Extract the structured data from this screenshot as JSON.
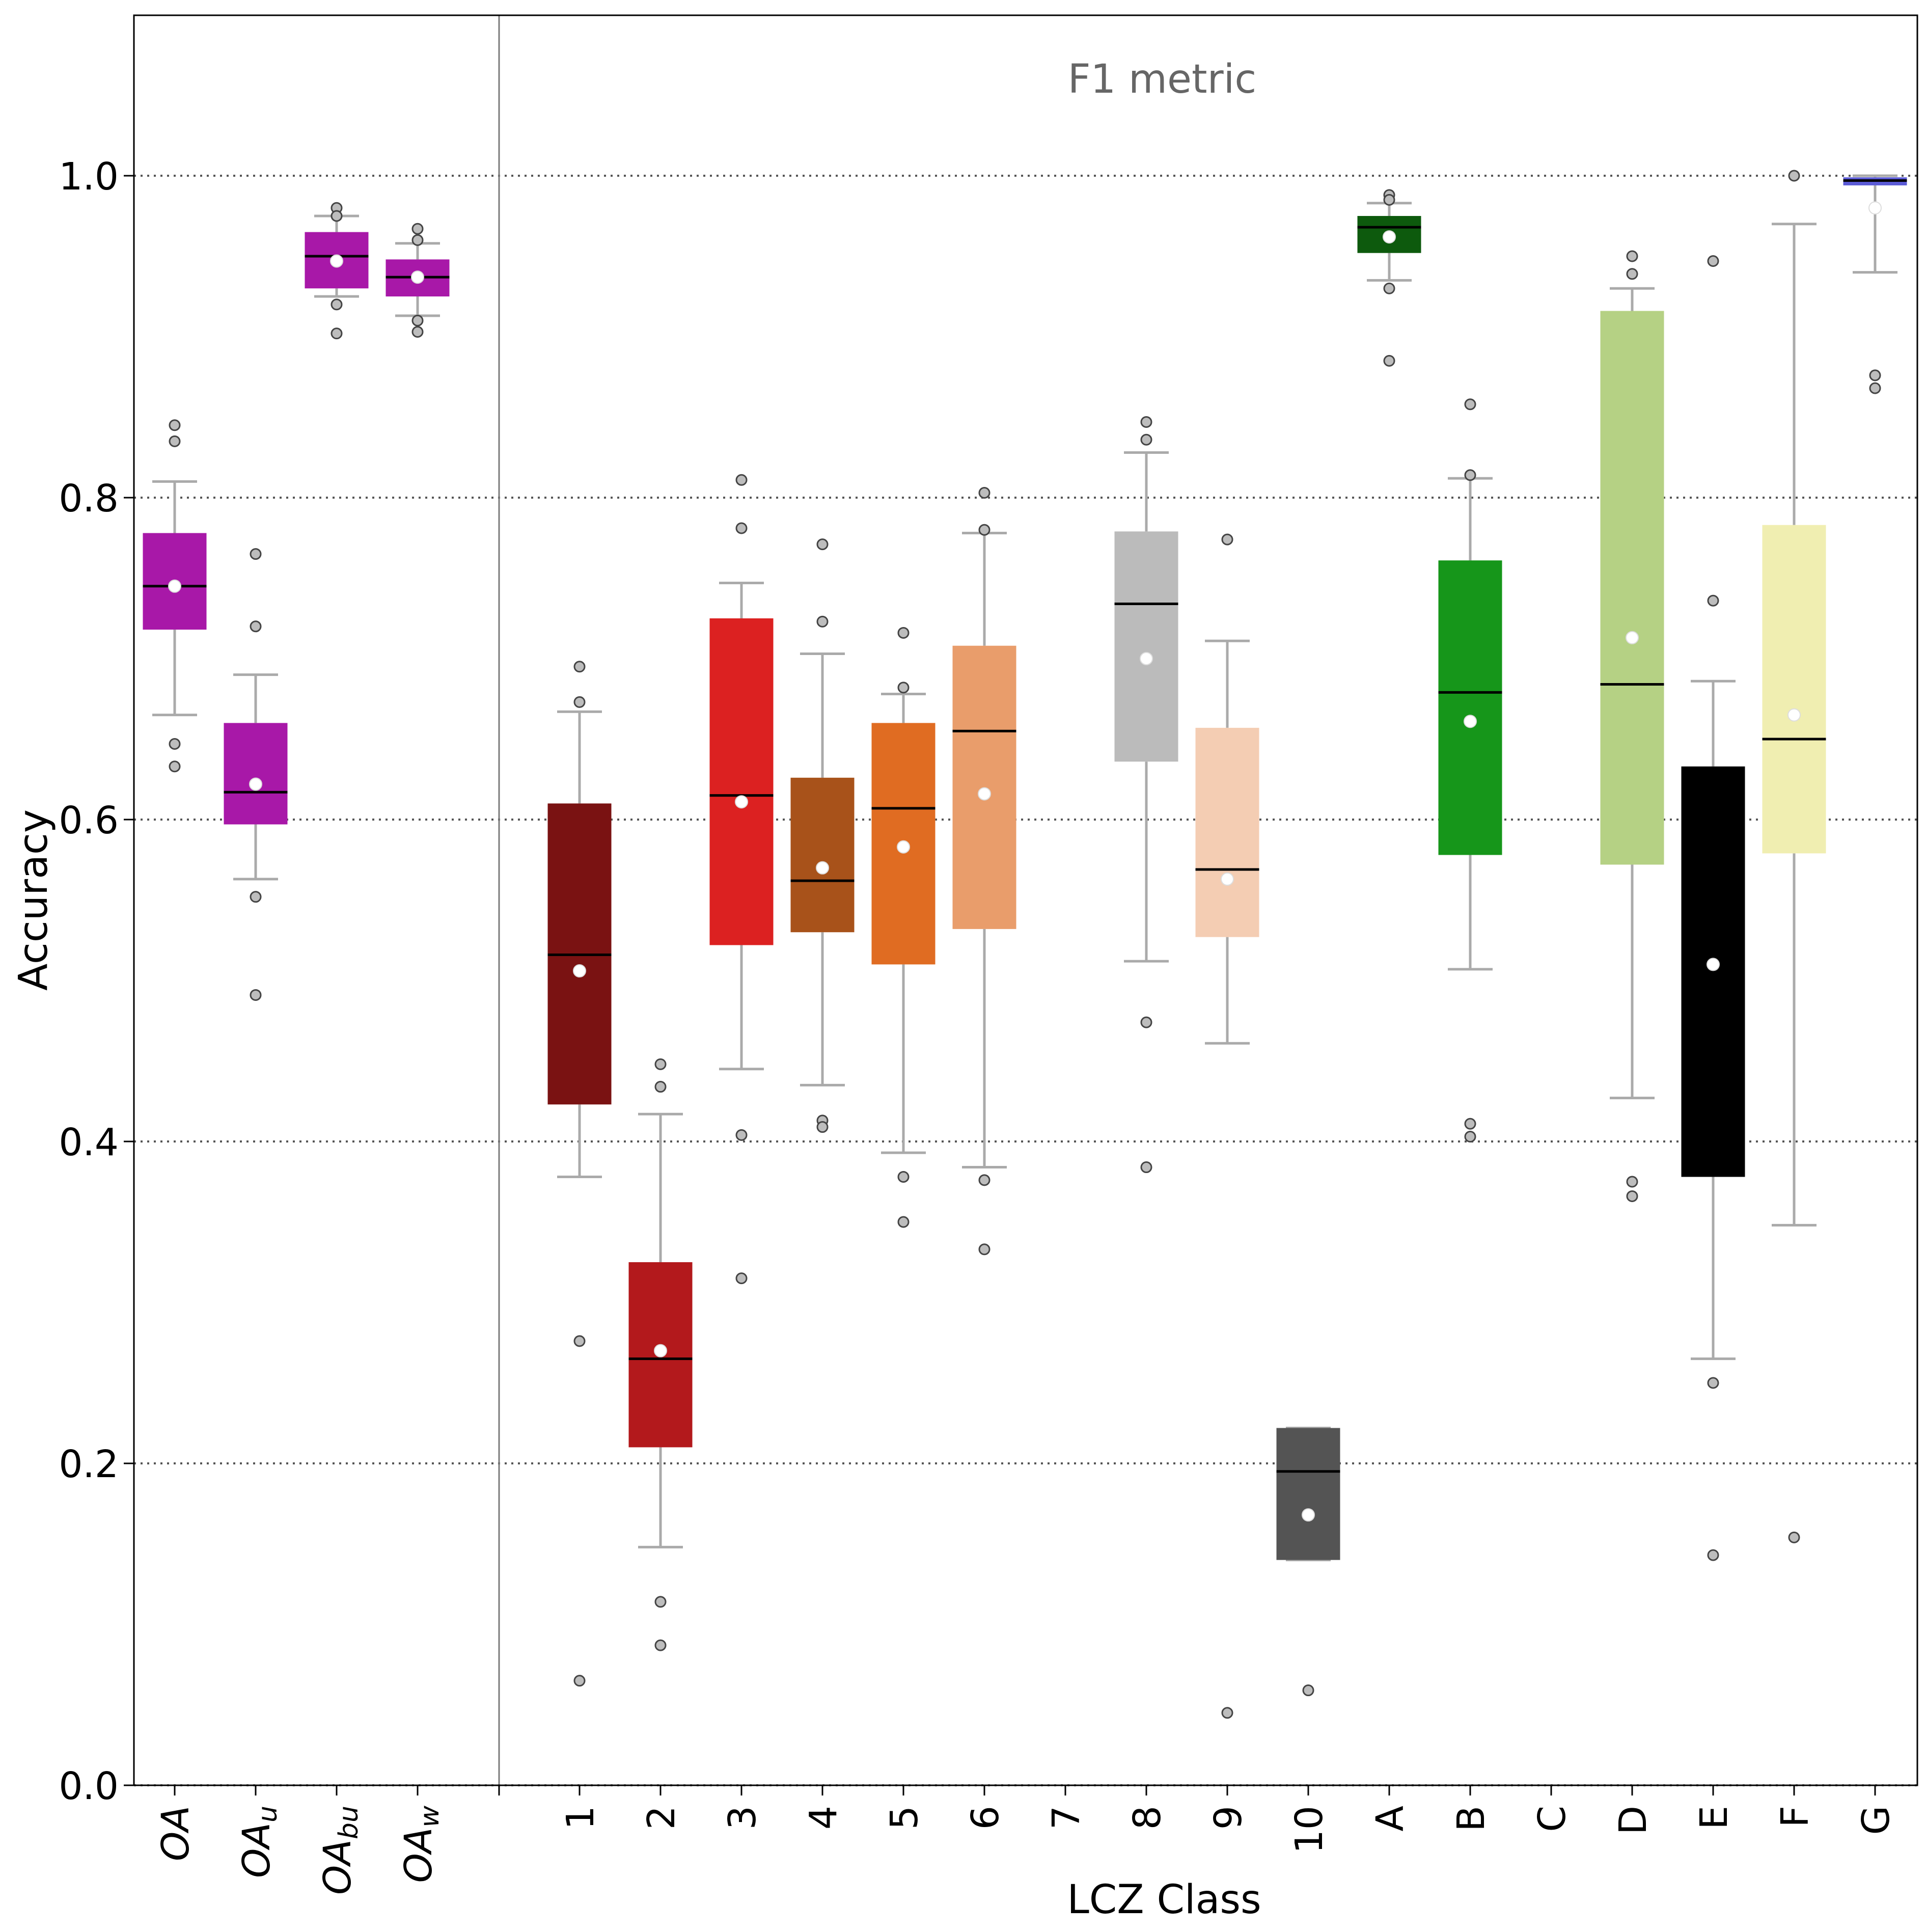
{
  "chart_data": {
    "type": "box",
    "title": "F1 metric",
    "xlabel": "LCZ Class",
    "ylabel": "Accuracy",
    "ylim": [
      0.0,
      1.1
    ],
    "yticks": [
      0.0,
      0.2,
      0.4,
      0.6,
      0.8,
      1.0
    ],
    "ytick_labels": [
      "0.0",
      "0.2",
      "0.4",
      "0.6",
      "0.8",
      "1.0"
    ],
    "grid": "horizontal dotted at 0.2 intervals",
    "divider_between": [
      "OA_w",
      "1"
    ],
    "overall_groups": [
      {
        "label": "OA",
        "sub": "",
        "color": "#a818a8",
        "whislo": 0.665,
        "q1": 0.718,
        "med": 0.745,
        "q3": 0.778,
        "whishi": 0.81,
        "mean": 0.745,
        "fliers": [
          0.845,
          0.835,
          0.647,
          0.633
        ]
      },
      {
        "label": "OA",
        "sub": "u",
        "color": "#a818a8",
        "whislo": 0.563,
        "q1": 0.597,
        "med": 0.617,
        "q3": 0.66,
        "whishi": 0.69,
        "mean": 0.622,
        "fliers": [
          0.765,
          0.72,
          0.552,
          0.491
        ]
      },
      {
        "label": "OA",
        "sub": "bu",
        "color": "#a818a8",
        "whislo": 0.925,
        "q1": 0.93,
        "med": 0.95,
        "q3": 0.965,
        "whishi": 0.975,
        "mean": 0.947,
        "fliers": [
          0.98,
          0.975,
          0.92,
          0.902
        ]
      },
      {
        "label": "OA",
        "sub": "w",
        "color": "#a818a8",
        "whislo": 0.913,
        "q1": 0.925,
        "med": 0.937,
        "q3": 0.948,
        "whishi": 0.958,
        "mean": 0.937,
        "fliers": [
          0.967,
          0.96,
          0.91,
          0.903
        ]
      }
    ],
    "categories": [
      "1",
      "2",
      "3",
      "4",
      "5",
      "6",
      "7",
      "8",
      "9",
      "10",
      "A",
      "B",
      "C",
      "D",
      "E",
      "F",
      "G"
    ],
    "series": [
      {
        "name": "1",
        "color": "#7a1212",
        "whislo": 0.378,
        "q1": 0.423,
        "med": 0.516,
        "q3": 0.61,
        "whishi": 0.667,
        "mean": 0.506,
        "fliers": [
          0.695,
          0.673,
          0.276,
          0.065
        ]
      },
      {
        "name": "2",
        "color": "#b3191c",
        "whislo": 0.148,
        "q1": 0.21,
        "med": 0.265,
        "q3": 0.325,
        "whishi": 0.417,
        "mean": 0.27,
        "fliers": [
          0.448,
          0.434,
          0.114,
          0.087
        ]
      },
      {
        "name": "3",
        "color": "#dc2121",
        "whislo": 0.445,
        "q1": 0.522,
        "med": 0.615,
        "q3": 0.725,
        "whishi": 0.747,
        "mean": 0.611,
        "fliers": [
          0.811,
          0.781,
          0.404,
          0.315
        ]
      },
      {
        "name": "4",
        "color": "#a8521a",
        "whislo": 0.435,
        "q1": 0.53,
        "med": 0.562,
        "q3": 0.626,
        "whishi": 0.703,
        "mean": 0.57,
        "fliers": [
          0.771,
          0.723,
          0.413,
          0.409
        ]
      },
      {
        "name": "5",
        "color": "#e06c22",
        "whislo": 0.393,
        "q1": 0.51,
        "med": 0.607,
        "q3": 0.66,
        "whishi": 0.678,
        "mean": 0.583,
        "fliers": [
          0.716,
          0.682,
          0.378,
          0.35
        ]
      },
      {
        "name": "6",
        "color": "#e99d6b",
        "whislo": 0.384,
        "q1": 0.532,
        "med": 0.655,
        "q3": 0.708,
        "whishi": 0.778,
        "mean": 0.616,
        "fliers": [
          0.803,
          0.78,
          0.376,
          0.333
        ]
      },
      {
        "name": "7",
        "color": "#ffffff",
        "empty": true
      },
      {
        "name": "8",
        "color": "#bbbbbb",
        "whislo": 0.512,
        "q1": 0.636,
        "med": 0.734,
        "q3": 0.779,
        "whishi": 0.828,
        "mean": 0.7,
        "fliers": [
          0.847,
          0.836,
          0.474,
          0.384
        ]
      },
      {
        "name": "9",
        "color": "#f4cdb3",
        "whislo": 0.461,
        "q1": 0.527,
        "med": 0.569,
        "q3": 0.657,
        "whishi": 0.711,
        "mean": 0.563,
        "fliers": [
          0.774,
          0.045
        ]
      },
      {
        "name": "10",
        "color": "#545454",
        "whislo": 0.14,
        "q1": 0.14,
        "med": 0.195,
        "q3": 0.222,
        "whishi": 0.222,
        "mean": 0.168,
        "fliers": [
          0.059
        ]
      },
      {
        "name": "A",
        "color": "#0d5a0d",
        "whislo": 0.935,
        "q1": 0.952,
        "med": 0.968,
        "q3": 0.975,
        "whishi": 0.983,
        "mean": 0.962,
        "fliers": [
          0.988,
          0.985,
          0.93,
          0.885
        ]
      },
      {
        "name": "B",
        "color": "#16961a",
        "whislo": 0.507,
        "q1": 0.578,
        "med": 0.679,
        "q3": 0.761,
        "whishi": 0.812,
        "mean": 0.661,
        "fliers": [
          0.858,
          0.814,
          0.411,
          0.403
        ]
      },
      {
        "name": "C",
        "color": "#ffffff",
        "empty": true
      },
      {
        "name": "D",
        "color": "#b5d184",
        "whislo": 0.427,
        "q1": 0.572,
        "med": 0.684,
        "q3": 0.916,
        "whishi": 0.93,
        "mean": 0.713,
        "fliers": [
          0.95,
          0.939,
          0.375,
          0.366
        ]
      },
      {
        "name": "E",
        "color": "#000000",
        "whislo": 0.265,
        "q1": 0.378,
        "med": 0.527,
        "q3": 0.633,
        "whishi": 0.686,
        "mean": 0.51,
        "fliers": [
          0.947,
          0.736,
          0.25,
          0.143
        ]
      },
      {
        "name": "F",
        "color": "#f0eeb1",
        "whislo": 0.348,
        "q1": 0.579,
        "med": 0.65,
        "q3": 0.783,
        "whishi": 0.97,
        "mean": 0.665,
        "fliers": [
          1.0,
          0.154
        ]
      },
      {
        "name": "G",
        "color": "#5b5bd6",
        "whislo": 0.94,
        "q1": 0.994,
        "med": 0.997,
        "q3": 0.999,
        "whishi": 1.0,
        "mean": 0.98,
        "fliers": [
          0.876,
          0.868
        ]
      }
    ]
  }
}
